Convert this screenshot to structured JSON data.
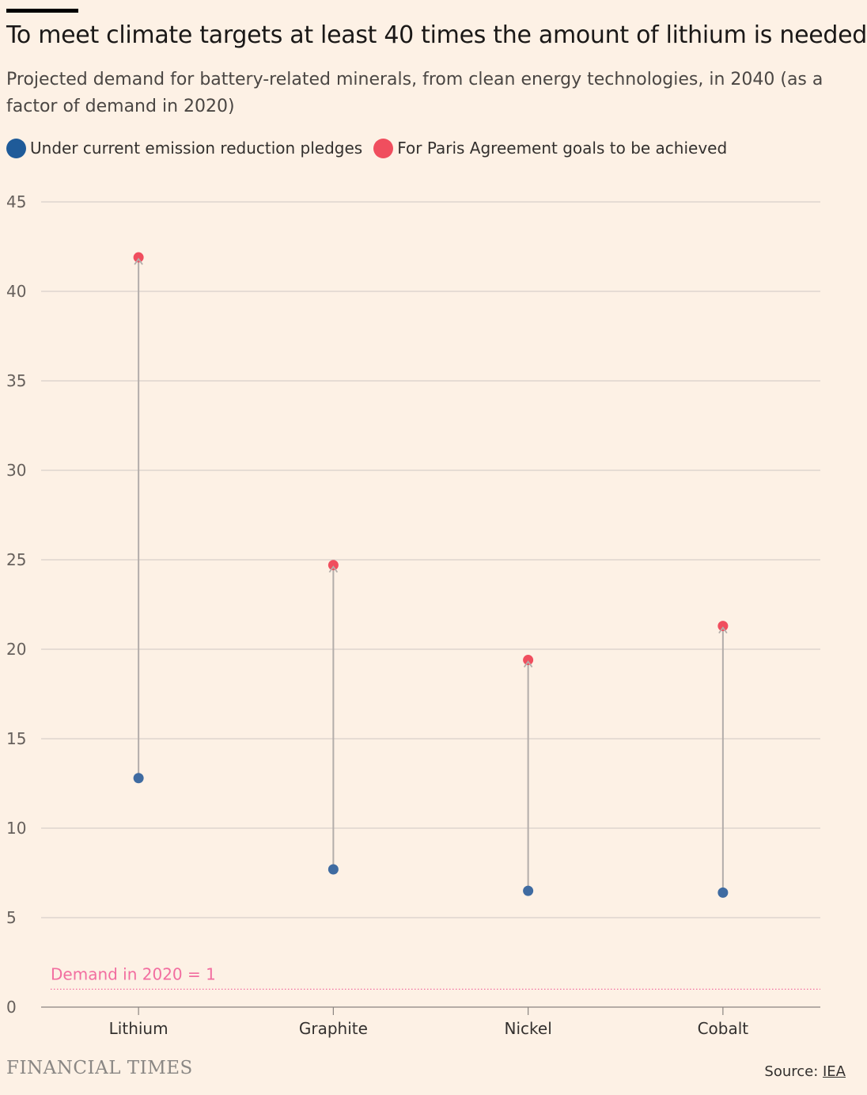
{
  "header": {
    "title": "To meet climate targets at least 40 times the amount of lithium is needed",
    "subtitle": "Projected demand for battery-related minerals, from clean energy technologies, in 2040 (as a factor of demand in 2020)"
  },
  "legend": {
    "items": [
      {
        "label": "Under current emission reduction pledges",
        "color": "#1f5b99"
      },
      {
        "label": "For Paris Agreement goals to be achieved",
        "color": "#f04e5e"
      }
    ]
  },
  "chart_data": {
    "type": "dumbbell",
    "categories": [
      "Lithium",
      "Graphite",
      "Nickel",
      "Cobalt"
    ],
    "series": [
      {
        "name": "Under current emission reduction pledges",
        "values": [
          12.8,
          7.7,
          6.5,
          6.4
        ],
        "color": "#3f6ba1"
      },
      {
        "name": "For Paris Agreement goals to be achieved",
        "values": [
          41.9,
          24.7,
          19.4,
          21.3
        ],
        "color": "#f04e5e"
      }
    ],
    "ylim": [
      0,
      45
    ],
    "yticks": [
      0,
      5,
      10,
      15,
      20,
      25,
      30,
      35,
      40,
      45
    ],
    "grid": true,
    "reference_line": {
      "value": 1,
      "label": "Demand in 2020 = 1",
      "color": "#f26ea0"
    },
    "connector_color": "#b3adaa"
  },
  "footer": {
    "logo": "FINANCIAL TIMES",
    "source_prefix": "Source: ",
    "source_link": "IEA"
  }
}
